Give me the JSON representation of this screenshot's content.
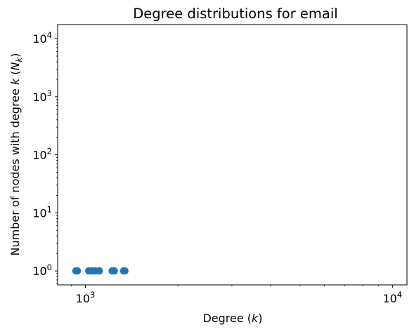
{
  "chart_data": {
    "type": "scatter",
    "title": "Degree distributions for email",
    "xlabel": {
      "text": "Degree (",
      "var": "k",
      "close": ")"
    },
    "ylabel": {
      "text": "Number of nodes with degree ",
      "var": "k",
      "mid": " (",
      "var2": "N",
      "sub": "k",
      "close": ")"
    },
    "xscale": "log",
    "yscale": "log",
    "xlim": [
      812,
      11150
    ],
    "ylim": [
      0.575,
      17500
    ],
    "x_ticks": [
      {
        "base": "10",
        "exp": "3",
        "value": 1000
      },
      {
        "base": "10",
        "exp": "4",
        "value": 10000
      }
    ],
    "y_ticks": [
      {
        "base": "10",
        "exp": "0",
        "value": 1
      },
      {
        "base": "10",
        "exp": "1",
        "value": 10
      },
      {
        "base": "10",
        "exp": "2",
        "value": 100
      },
      {
        "base": "10",
        "exp": "3",
        "value": 1000
      },
      {
        "base": "10",
        "exp": "4",
        "value": 10000
      }
    ],
    "marker_color": "#1f77b4",
    "points": [
      {
        "x": 931,
        "y": 1
      },
      {
        "x": 942,
        "y": 1
      },
      {
        "x": 1025,
        "y": 1
      },
      {
        "x": 1052,
        "y": 1
      },
      {
        "x": 1078,
        "y": 1
      },
      {
        "x": 1110,
        "y": 1
      },
      {
        "x": 1222,
        "y": 1
      },
      {
        "x": 1242,
        "y": 1
      },
      {
        "x": 1332,
        "y": 1
      },
      {
        "x": 1345,
        "y": 1
      }
    ]
  }
}
